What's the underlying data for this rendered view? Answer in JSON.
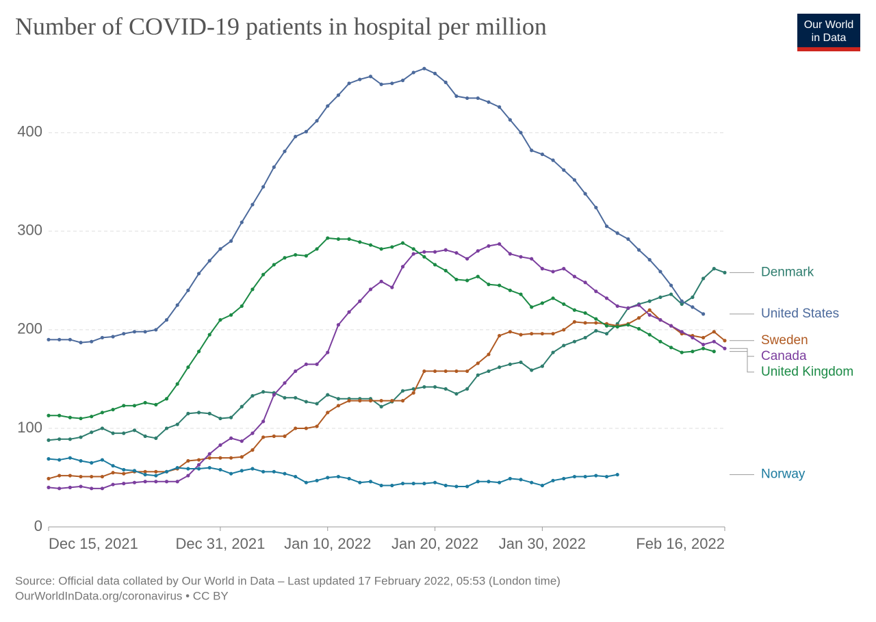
{
  "chart_data": {
    "type": "line",
    "title": "Number of COVID-19 patients in hospital per million",
    "logo": {
      "line1": "Our World",
      "line2": "in Data"
    },
    "source": "Source: Official data collated by Our World in Data – Last updated 17 February 2022, 05:53 (London time)",
    "footer": "OurWorldInData.org/coronavirus • CC BY",
    "categories": [
      "Dec 15, 2021",
      null,
      null,
      null,
      null,
      null,
      null,
      null,
      null,
      null,
      null,
      null,
      null,
      null,
      null,
      null,
      "Dec 31, 2021",
      null,
      null,
      null,
      null,
      null,
      null,
      null,
      null,
      null,
      "Jan 10, 2022",
      null,
      null,
      null,
      null,
      null,
      null,
      null,
      null,
      null,
      "Jan 20, 2022",
      null,
      null,
      null,
      null,
      null,
      null,
      null,
      null,
      null,
      "Jan 30, 2022",
      null,
      null,
      null,
      null,
      null,
      null,
      null,
      null,
      null,
      null,
      null,
      null,
      null,
      null,
      null,
      null,
      "Feb 16, 2022"
    ],
    "ylim": [
      0,
      470
    ],
    "yticks": [
      0,
      100,
      200,
      300,
      400
    ],
    "grid": true,
    "series": [
      {
        "name": "Denmark",
        "color": "#2e7d6e",
        "values": [
          88,
          89,
          89,
          91,
          96,
          100,
          95,
          95,
          98,
          92,
          90,
          100,
          104,
          115,
          116,
          115,
          110,
          111,
          122,
          133,
          137,
          136,
          131,
          131,
          127,
          125,
          134,
          130,
          130,
          130,
          130,
          122,
          127,
          138,
          140,
          142,
          142,
          140,
          135,
          140,
          154,
          158,
          162,
          165,
          167,
          159,
          163,
          177,
          184,
          188,
          192,
          199,
          196,
          206,
          222,
          226,
          229,
          233,
          236,
          226,
          233,
          252,
          262,
          258
        ]
      },
      {
        "name": "United States",
        "color": "#4c6a9c",
        "values": [
          190,
          190,
          190,
          187,
          188,
          192,
          193,
          196,
          198,
          198,
          200,
          210,
          225,
          240,
          257,
          270,
          282,
          290,
          309,
          327,
          345,
          365,
          381,
          396,
          401,
          412,
          427,
          438,
          450,
          454,
          457,
          449,
          450,
          453,
          461,
          465,
          460,
          451,
          437,
          435,
          435,
          431,
          426,
          413,
          400,
          382,
          378,
          372,
          362,
          352,
          338,
          324,
          305,
          298,
          292,
          281,
          271,
          259,
          245,
          229,
          223,
          216,
          null,
          null
        ]
      },
      {
        "name": "Sweden",
        "color": "#b05a22",
        "values": [
          49,
          52,
          52,
          51,
          51,
          51,
          55,
          54,
          56,
          56,
          56,
          56,
          59,
          67,
          68,
          70,
          70,
          70,
          71,
          78,
          91,
          92,
          92,
          100,
          100,
          102,
          116,
          123,
          128,
          128,
          128,
          128,
          128,
          128,
          136,
          158,
          158,
          158,
          158,
          158,
          166,
          175,
          194,
          198,
          195,
          196,
          196,
          196,
          200,
          208,
          207,
          207,
          206,
          204,
          206,
          212,
          220,
          210,
          204,
          196,
          194,
          192,
          198,
          189
        ]
      },
      {
        "name": "Canada",
        "color": "#7b3e9e",
        "values": [
          40,
          39,
          40,
          41,
          39,
          39,
          43,
          44,
          45,
          46,
          46,
          46,
          46,
          52,
          63,
          74,
          83,
          90,
          87,
          95,
          107,
          134,
          146,
          158,
          165,
          165,
          177,
          205,
          218,
          229,
          241,
          249,
          243,
          264,
          277,
          279,
          279,
          281,
          278,
          272,
          280,
          285,
          287,
          277,
          274,
          272,
          262,
          259,
          262,
          254,
          248,
          239,
          232,
          224,
          222,
          225,
          215,
          210,
          204,
          198,
          192,
          185,
          188,
          181
        ]
      },
      {
        "name": "United Kingdom",
        "color": "#1b8a45",
        "values": [
          113,
          113,
          111,
          110,
          112,
          116,
          119,
          123,
          123,
          126,
          124,
          130,
          145,
          162,
          178,
          195,
          210,
          215,
          224,
          241,
          256,
          266,
          273,
          276,
          275,
          282,
          293,
          292,
          292,
          289,
          286,
          282,
          284,
          288,
          282,
          274,
          266,
          260,
          251,
          250,
          254,
          246,
          245,
          240,
          236,
          223,
          227,
          232,
          226,
          220,
          217,
          211,
          204,
          203,
          205,
          201,
          195,
          188,
          182,
          177,
          178,
          181,
          178,
          null
        ]
      },
      {
        "name": "Norway",
        "color": "#1b7a9e",
        "values": [
          69,
          68,
          70,
          67,
          65,
          68,
          62,
          58,
          57,
          53,
          52,
          56,
          60,
          59,
          59,
          60,
          58,
          54,
          57,
          59,
          56,
          56,
          54,
          51,
          45,
          47,
          50,
          51,
          49,
          45,
          46,
          42,
          42,
          44,
          44,
          44,
          45,
          42,
          41,
          41,
          46,
          46,
          45,
          49,
          48,
          45,
          42,
          47,
          49,
          51,
          51,
          52,
          51,
          53,
          null,
          null,
          null,
          null,
          null,
          null,
          null,
          null,
          null,
          null
        ]
      }
    ]
  }
}
